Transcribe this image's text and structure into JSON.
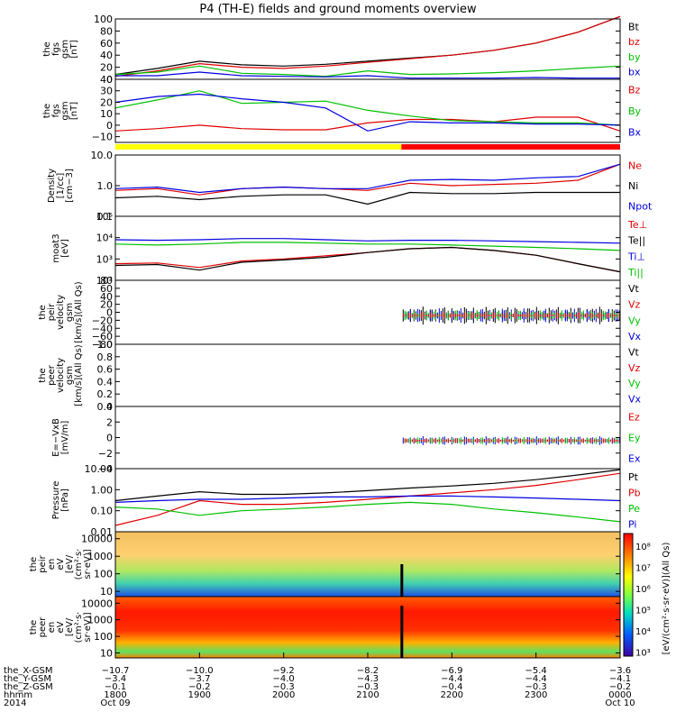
{
  "title": "P4 (TH-E) fields and ground moments overview",
  "panels": [
    {
      "id": "fgs-gsm-mag",
      "ylabel": [
        "the",
        "fgs",
        "gsm",
        "[nT]"
      ],
      "scale": "linear",
      "ylim": [
        0,
        100
      ],
      "ticks": [
        "100",
        "80",
        "60",
        "40",
        "20",
        "0"
      ],
      "tick_values": [
        100,
        80,
        60,
        40,
        20,
        0
      ],
      "legend": [
        {
          "label": "Bt",
          "color": "#000000"
        },
        {
          "label": "bz",
          "color": "#e00000"
        },
        {
          "label": "by",
          "color": "#00c000"
        },
        {
          "label": "bx",
          "color": "#0000e0"
        }
      ]
    },
    {
      "id": "fgs-gsm-comp",
      "ylabel": [
        "the",
        "fgs",
        "gsm",
        "[nT]"
      ],
      "scale": "linear",
      "ylim": [
        -15,
        40
      ],
      "ticks": [
        "40",
        "30",
        "20",
        "10",
        "0",
        "−10"
      ],
      "tick_values": [
        40,
        30,
        20,
        10,
        0,
        -10
      ],
      "legend": [
        {
          "label": "Bz",
          "color": "#e00000"
        },
        {
          "label": "By",
          "color": "#00c000"
        },
        {
          "label": "Bx",
          "color": "#0000e0"
        }
      ]
    },
    {
      "id": "density",
      "ylabel": [
        "Density",
        "[1/cc]",
        "[cm−3]"
      ],
      "scale": "log",
      "ylim": [
        0.1,
        10
      ],
      "ticks": [
        "10.0",
        "1.0",
        "0.1"
      ],
      "tick_values": [
        10,
        1,
        0.1
      ],
      "legend": [
        {
          "label": "Ne",
          "color": "#e00000"
        },
        {
          "label": "Ni",
          "color": "#000000"
        },
        {
          "label": "Npot",
          "color": "#0000e0"
        }
      ]
    },
    {
      "id": "temperature",
      "ylabel": [
        "moat3",
        "[eV]"
      ],
      "scale": "log",
      "ylim": [
        100,
        100000
      ],
      "ticks": [
        "10⁵",
        "10⁴",
        "10³",
        "10²"
      ],
      "tick_values": [
        100000,
        10000,
        1000,
        100
      ],
      "legend": [
        {
          "label": "Te⊥",
          "color": "#e00000"
        },
        {
          "label": "Te||",
          "color": "#000000"
        },
        {
          "label": "Ti⊥",
          "color": "#0000e0"
        },
        {
          "label": "Ti||",
          "color": "#00c000"
        }
      ]
    },
    {
      "id": "peir-velocity",
      "ylabel": [
        "the",
        "peir",
        "velocity",
        "gsm",
        "[km/s](All Qs)"
      ],
      "scale": "linear",
      "ylim": [
        -80,
        80
      ],
      "ticks": [
        "80",
        "60",
        "40",
        "20",
        "0",
        "−20",
        "−40",
        "−60",
        "−80"
      ],
      "tick_values": [
        80,
        60,
        40,
        20,
        0,
        -20,
        -40,
        -60,
        -80
      ],
      "legend": [
        {
          "label": "Vt",
          "color": "#000000"
        },
        {
          "label": "Vz",
          "color": "#e00000"
        },
        {
          "label": "Vy",
          "color": "#00c000"
        },
        {
          "label": "Vx",
          "color": "#0000e0"
        }
      ]
    },
    {
      "id": "peer-velocity",
      "ylabel": [
        "the",
        "peer",
        "velocity",
        "gsm",
        "[km/s](All Qs)"
      ],
      "scale": "linear",
      "ylim": [
        0,
        1
      ],
      "ticks": [
        "1.0",
        "0.8",
        "0.6",
        "0.4",
        "0.2",
        "0.0"
      ],
      "tick_values": [
        1,
        0.8,
        0.6,
        0.4,
        0.2,
        0
      ],
      "legend": [
        {
          "label": "Vt",
          "color": "#000000"
        },
        {
          "label": "Vz",
          "color": "#e00000"
        },
        {
          "label": "Vy",
          "color": "#00c000"
        },
        {
          "label": "Vx",
          "color": "#0000e0"
        }
      ]
    },
    {
      "id": "e-field",
      "ylabel": [
        "E=−VxB",
        "[mV/m]"
      ],
      "scale": "linear",
      "ylim": [
        -4,
        4
      ],
      "ticks": [
        "4",
        "2",
        "0",
        "−2",
        "−4"
      ],
      "tick_values": [
        4,
        2,
        0,
        -2,
        -4
      ],
      "legend": [
        {
          "label": "Ez",
          "color": "#e00000"
        },
        {
          "label": "Ey",
          "color": "#00c000"
        },
        {
          "label": "Ex",
          "color": "#0000e0"
        }
      ]
    },
    {
      "id": "pressure",
      "ylabel": [
        "Pressure",
        "[nPa]"
      ],
      "scale": "log",
      "ylim": [
        0.01,
        10
      ],
      "ticks": [
        "10.00",
        "1.00",
        "0.10",
        "0.01"
      ],
      "tick_values": [
        10,
        1,
        0.1,
        0.01
      ],
      "legend": [
        {
          "label": "Pt",
          "color": "#000000"
        },
        {
          "label": "Pb",
          "color": "#e00000"
        },
        {
          "label": "Pe",
          "color": "#00c000"
        },
        {
          "label": "Pi",
          "color": "#0000e0"
        }
      ]
    },
    {
      "id": "peir-spec",
      "ylabel": [
        "the",
        "peir",
        "en",
        "eV",
        "[eV/",
        "(cm²·s·",
        "sr·eV)]"
      ],
      "scale": "log",
      "ylim": [
        5,
        25000
      ],
      "ticks": [
        "10000",
        "1000",
        "100",
        "10"
      ],
      "tick_values": [
        10000,
        1000,
        100,
        10
      ]
    },
    {
      "id": "peer-spec",
      "ylabel": [
        "the",
        "peer",
        "en",
        "eV",
        "[eV/",
        "(cm²·s·",
        "sr·eV)]"
      ],
      "scale": "log",
      "ylim": [
        5,
        25000
      ],
      "ticks": [
        "10000",
        "1000",
        "100",
        "10"
      ],
      "tick_values": [
        10000,
        1000,
        100,
        10
      ]
    }
  ],
  "mode_bar": {
    "colors": [
      "#ffff00",
      "#ff0000"
    ],
    "switch_hhmm": "2124"
  },
  "colorbar": {
    "label": "[eV/(cm²·s·sr·eV)](All Qs)",
    "ticks": [
      "10⁸",
      "10⁷",
      "10⁶",
      "10⁵",
      "10⁴",
      "10³"
    ],
    "tick_values": [
      8,
      7,
      6,
      5,
      4,
      3
    ]
  },
  "x_axis": {
    "row_labels": [
      "the_X-GSM",
      "the_Y-GSM",
      "the_Z-GSM",
      "hhmm",
      "2014"
    ],
    "tick_hhmm": [
      "1800",
      "1900",
      "2000",
      "2100",
      "2200",
      "2300",
      "0000"
    ],
    "x_gsm": [
      "−10.7",
      "−10.0",
      "−9.2",
      "−8.2",
      "−6.9",
      "−5.4",
      "−3.6"
    ],
    "y_gsm": [
      "−3.4",
      "−3.7",
      "−4.0",
      "−4.3",
      "−4.4",
      "−4.4",
      "−4.1"
    ],
    "z_gsm": [
      "−0.1",
      "−0.2",
      "−0.3",
      "−0.3",
      "−0.4",
      "−0.3",
      "−0.2"
    ],
    "dates": [
      {
        "at": "1800",
        "text": "Oct 09"
      },
      {
        "at": "0000",
        "text": "Oct 10"
      }
    ]
  },
  "chart_data": {
    "type": "line",
    "title": "P4 (TH-E) fields and ground moments overview",
    "x_time_range": [
      "2014-10-09 18:00",
      "2014-10-10 00:00"
    ],
    "mode_switch_time": "2014-10-09 21:24",
    "series": [
      {
        "panel": "fgs-gsm-mag",
        "name": "Bt",
        "x": [
          "18:00",
          "18:30",
          "19:00",
          "19:30",
          "20:00",
          "20:30",
          "21:00",
          "21:30",
          "22:00",
          "22:30",
          "23:00",
          "23:30",
          "00:00"
        ],
        "values": [
          8,
          18,
          30,
          24,
          22,
          25,
          30,
          35,
          40,
          48,
          60,
          78,
          104
        ]
      },
      {
        "panel": "fgs-gsm-mag",
        "name": "bz",
        "x": [
          "18:00",
          "18:30",
          "19:00",
          "19:30",
          "20:00",
          "20:30",
          "21:00",
          "21:30",
          "22:00",
          "22:30",
          "23:00",
          "23:30",
          "00:00"
        ],
        "values": [
          5,
          14,
          26,
          20,
          18,
          22,
          28,
          34,
          40,
          48,
          60,
          78,
          104
        ]
      },
      {
        "panel": "fgs-gsm-mag",
        "name": "by",
        "x": [
          "18:00",
          "18:30",
          "19:00",
          "19:30",
          "20:00",
          "20:30",
          "21:00",
          "21:30",
          "22:00",
          "22:30",
          "23:00",
          "23:30",
          "00:00"
        ],
        "values": [
          8,
          12,
          22,
          10,
          8,
          5,
          14,
          8,
          9,
          11,
          14,
          18,
          22
        ]
      },
      {
        "panel": "fgs-gsm-mag",
        "name": "bx",
        "x": [
          "18:00",
          "18:30",
          "19:00",
          "19:30",
          "20:00",
          "20:30",
          "21:00",
          "21:30",
          "22:00",
          "22:30",
          "23:00",
          "23:30",
          "00:00"
        ],
        "values": [
          6,
          6,
          12,
          6,
          5,
          4,
          6,
          2,
          2,
          2,
          3,
          2,
          2
        ]
      },
      {
        "panel": "fgs-gsm-comp",
        "name": "Bz",
        "x": [
          "18:00",
          "18:30",
          "19:00",
          "19:30",
          "20:00",
          "20:30",
          "21:00",
          "21:30",
          "22:00",
          "22:30",
          "23:00",
          "23:30",
          "00:00"
        ],
        "values": [
          -5,
          -3,
          0,
          -3,
          -4,
          -4,
          2,
          5,
          5,
          3,
          7,
          7,
          -5
        ]
      },
      {
        "panel": "fgs-gsm-comp",
        "name": "By",
        "x": [
          "18:00",
          "18:30",
          "19:00",
          "19:30",
          "20:00",
          "20:30",
          "21:00",
          "21:30",
          "22:00",
          "22:30",
          "23:00",
          "23:30",
          "00:00"
        ],
        "values": [
          15,
          22,
          30,
          19,
          20,
          21,
          13,
          8,
          4,
          3,
          2,
          2,
          0
        ]
      },
      {
        "panel": "fgs-gsm-comp",
        "name": "Bx",
        "x": [
          "18:00",
          "18:30",
          "19:00",
          "19:30",
          "20:00",
          "20:30",
          "21:00",
          "21:30",
          "22:00",
          "22:30",
          "23:00",
          "23:30",
          "00:00"
        ],
        "values": [
          20,
          25,
          27,
          23,
          20,
          15,
          -5,
          3,
          2,
          2,
          1,
          1,
          0
        ]
      },
      {
        "panel": "density",
        "name": "Ne",
        "x": [
          "18:00",
          "18:30",
          "19:00",
          "19:30",
          "20:00",
          "20:30",
          "21:00",
          "21:30",
          "22:00",
          "22:30",
          "23:00",
          "23:30",
          "00:00"
        ],
        "values": [
          0.7,
          0.8,
          0.5,
          0.8,
          0.9,
          0.8,
          0.7,
          1.2,
          1.0,
          1.1,
          1.2,
          1.5,
          5
        ]
      },
      {
        "panel": "density",
        "name": "Ni",
        "x": [
          "18:00",
          "18:30",
          "19:00",
          "19:30",
          "20:00",
          "20:30",
          "21:00",
          "21:30",
          "22:00",
          "22:30",
          "23:00",
          "23:30",
          "00:00"
        ],
        "values": [
          0.4,
          0.45,
          0.35,
          0.45,
          0.5,
          0.5,
          0.25,
          0.6,
          0.55,
          0.55,
          0.6,
          0.6,
          0.6
        ]
      },
      {
        "panel": "density",
        "name": "Npot",
        "x": [
          "18:00",
          "18:30",
          "19:00",
          "19:30",
          "20:00",
          "20:30",
          "21:00",
          "21:30",
          "22:00",
          "22:30",
          "23:00",
          "23:30",
          "00:00"
        ],
        "values": [
          0.8,
          0.9,
          0.6,
          0.8,
          0.9,
          0.8,
          0.8,
          1.5,
          1.6,
          1.5,
          1.8,
          2.0,
          5
        ]
      },
      {
        "panel": "temperature",
        "name": "Te⊥",
        "x": [
          "18:00",
          "18:30",
          "19:00",
          "19:30",
          "20:00",
          "20:30",
          "21:00",
          "21:30",
          "22:00",
          "22:30",
          "23:00",
          "23:30",
          "00:00"
        ],
        "values": [
          600,
          650,
          400,
          800,
          1000,
          1400,
          2000,
          3000,
          3500,
          2500,
          1500,
          600,
          250
        ]
      },
      {
        "panel": "temperature",
        "name": "Te||",
        "x": [
          "18:00",
          "18:30",
          "19:00",
          "19:30",
          "20:00",
          "20:30",
          "21:00",
          "21:30",
          "22:00",
          "22:30",
          "23:00",
          "23:30",
          "00:00"
        ],
        "values": [
          500,
          550,
          300,
          700,
          900,
          1200,
          2000,
          3000,
          3500,
          2500,
          1500,
          600,
          250
        ]
      },
      {
        "panel": "temperature",
        "name": "Ti⊥",
        "x": [
          "18:00",
          "18:30",
          "19:00",
          "19:30",
          "20:00",
          "20:30",
          "21:00",
          "21:30",
          "22:00",
          "22:30",
          "23:00",
          "23:30",
          "00:00"
        ],
        "values": [
          8000,
          7500,
          8000,
          9000,
          9000,
          8000,
          7000,
          7500,
          7500,
          7000,
          6500,
          6000,
          5500
        ]
      },
      {
        "panel": "temperature",
        "name": "Ti||",
        "x": [
          "18:00",
          "18:30",
          "19:00",
          "19:30",
          "20:00",
          "20:30",
          "21:00",
          "21:30",
          "22:00",
          "22:30",
          "23:00",
          "23:30",
          "00:00"
        ],
        "values": [
          5000,
          4500,
          5000,
          6000,
          6000,
          5500,
          5000,
          5000,
          4500,
          4000,
          3500,
          3000,
          2500
        ]
      },
      {
        "panel": "pressure",
        "name": "Pt",
        "x": [
          "18:00",
          "18:30",
          "19:00",
          "19:30",
          "20:00",
          "20:30",
          "21:00",
          "21:30",
          "22:00",
          "22:30",
          "23:00",
          "23:30",
          "00:00"
        ],
        "values": [
          0.3,
          0.5,
          0.8,
          0.6,
          0.6,
          0.7,
          0.9,
          1.2,
          1.5,
          2.0,
          3.0,
          5.0,
          9.0
        ]
      },
      {
        "panel": "pressure",
        "name": "Pb",
        "x": [
          "18:00",
          "18:30",
          "19:00",
          "19:30",
          "20:00",
          "20:30",
          "21:00",
          "21:30",
          "22:00",
          "22:30",
          "23:00",
          "23:30",
          "00:00"
        ],
        "values": [
          0.02,
          0.06,
          0.3,
          0.2,
          0.2,
          0.25,
          0.35,
          0.5,
          0.7,
          1.0,
          1.6,
          3.0,
          6.0
        ]
      },
      {
        "panel": "pressure",
        "name": "Pe",
        "x": [
          "18:00",
          "18:30",
          "19:00",
          "19:30",
          "20:00",
          "20:30",
          "21:00",
          "21:30",
          "22:00",
          "22:30",
          "23:00",
          "23:30",
          "00:00"
        ],
        "values": [
          0.15,
          0.12,
          0.06,
          0.1,
          0.12,
          0.15,
          0.2,
          0.25,
          0.2,
          0.12,
          0.08,
          0.05,
          0.03
        ]
      },
      {
        "panel": "pressure",
        "name": "Pi",
        "x": [
          "18:00",
          "18:30",
          "19:00",
          "19:30",
          "20:00",
          "20:30",
          "21:00",
          "21:30",
          "22:00",
          "22:30",
          "23:00",
          "23:30",
          "00:00"
        ],
        "values": [
          0.25,
          0.3,
          0.35,
          0.35,
          0.4,
          0.45,
          0.45,
          0.5,
          0.5,
          0.45,
          0.4,
          0.35,
          0.3
        ]
      }
    ]
  }
}
